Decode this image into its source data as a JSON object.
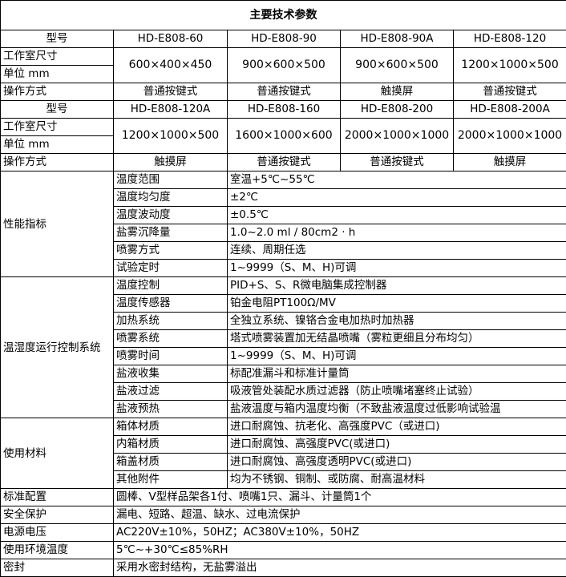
{
  "title": "主要技术参数",
  "model_blocks": [
    {
      "model_label": "型号",
      "size_label_1": "工作室尺寸",
      "size_label_2": "单位 mm",
      "op_label": "操作方式",
      "models": [
        "HD-E808-60",
        "HD-E808-90",
        "HD-E808-90A",
        "HD-E808-120"
      ],
      "sizes": [
        "600×400×450",
        "900×600×500",
        "900×600×500",
        "1200×1000×500"
      ],
      "ops": [
        "普通按键式",
        "普通按键式",
        "触摸屏",
        "普通按键式"
      ]
    },
    {
      "model_label": "型号",
      "size_label_1": "工作室尺寸",
      "size_label_2": "单位 mm",
      "op_label": "操作方式",
      "models": [
        "HD-E808-120A",
        "HD-E808-160",
        "HD-E808-200",
        "HD-E808-200A"
      ],
      "sizes": [
        "1200×1000×500",
        "1600×1000×600",
        "2000×1000×1000",
        "2000×1000×1000"
      ],
      "ops": [
        "触摸屏",
        "普通按键式",
        "普通按键式",
        "触摸屏"
      ]
    }
  ],
  "groups": [
    {
      "category": "性能指标",
      "rows": [
        {
          "name": "温度范围",
          "value": "室温+5℃~55℃"
        },
        {
          "name": "温度均匀度",
          "value": "±2℃"
        },
        {
          "name": "温度波动度",
          "value": "±0.5℃"
        },
        {
          "name": "盐雾沉降量",
          "value": "1.0~2.0 ml / 80cm2 · h"
        },
        {
          "name": "喷雾方式",
          "value": "连续、周期任选"
        },
        {
          "name": "试验定时",
          "value": "1~9999（S、M、H)可调"
        }
      ]
    },
    {
      "category": "温湿度运行控制系统",
      "rows": [
        {
          "name": "温度控制",
          "value": "PID+S、S、R微电脑集成控制器"
        },
        {
          "name": "温度传感器",
          "value": "铂金电阻PT100Ω/MV"
        },
        {
          "name": "加热系统",
          "value": "全独立系统、镍铬合金电加热时加热器"
        },
        {
          "name": "喷雾系统",
          "value": "塔式喷雾装置加无结晶喷嘴（雾粒更细且分布均匀）"
        },
        {
          "name": "喷雾时间",
          "value": "1~9999（S、M、H)可调"
        },
        {
          "name": "盐液收集",
          "value": "标配准漏斗和标准计量筒"
        },
        {
          "name": "盐液过滤",
          "value": "吸液管处装配水质过滤器（防止喷嘴堵塞终止试验）"
        },
        {
          "name": "盐液预热",
          "value": "盐液温度与箱内温度均衡（不致盐液温度过低影响试验温"
        }
      ]
    },
    {
      "category": "使用材料",
      "rows": [
        {
          "name": "箱体材质",
          "value": "进口耐腐蚀、抗老化、高强度PVC（或进口)"
        },
        {
          "name": "内箱材质",
          "value": "进口耐腐蚀、高强度PVC(或进口)"
        },
        {
          "name": "箱盖材质",
          "value": "进口耐腐蚀、高强度透明PVC(或进口)"
        },
        {
          "name": "其他附件",
          "value": "均为不锈钢、铜制、或防腐、耐高温材料"
        }
      ]
    }
  ],
  "simple_rows": [
    {
      "name": "标准配置",
      "value": "圆棒、V型样品架各1付、喷嘴1只、漏斗、计量筒1个"
    },
    {
      "name": "安全保护",
      "value": "漏电、短路、超温、缺水、过电流保护"
    },
    {
      "name": "电源电压",
      "value": "AC220V±10%，50HZ；AC380V±10%，50HZ"
    },
    {
      "name": "使用环境温度",
      "value": "5℃~+30℃≤85%RH"
    },
    {
      "name": "密封",
      "value": "采用水密封结构，无盐雾溢出"
    }
  ]
}
